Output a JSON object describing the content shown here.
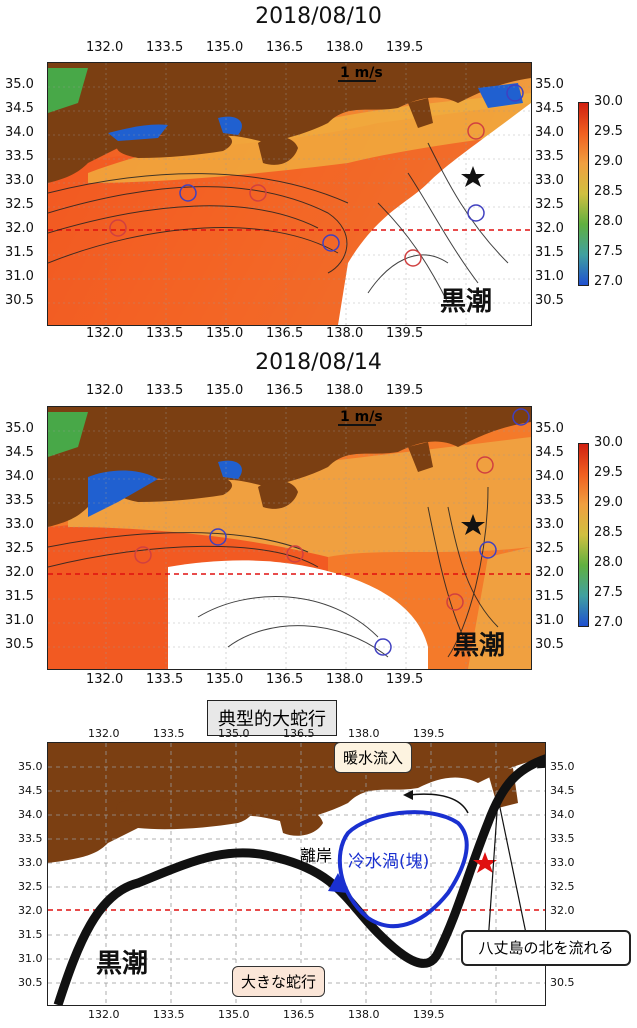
{
  "panel1": {
    "title": "2018/08/10",
    "scale": "1 m/s",
    "kuroshio": "黒潮"
  },
  "panel2": {
    "title": "2018/08/14",
    "scale": "1 m/s",
    "kuroshio": "黒潮"
  },
  "panel3": {
    "title": "典型的大蛇行",
    "kuroshio": "黒潮",
    "cold_eddy": "冷水渦(塊)",
    "warm_inflow": "暖水流入",
    "offshore": "離岸",
    "meander": "大きな蛇行",
    "hachijo": "八丈島の北を流れる"
  },
  "axes": {
    "lon_ticks": [
      "132.0",
      "133.5",
      "135.0",
      "136.5",
      "138.0",
      "139.5"
    ],
    "lat_ticks": [
      "35.0",
      "34.5",
      "34.0",
      "33.5",
      "33.0",
      "32.5",
      "32.0",
      "31.5",
      "31.0",
      "30.5"
    ]
  },
  "colorbar": {
    "labels": [
      "30.0",
      "29.5",
      "29.0",
      "28.5",
      "28.0",
      "27.5",
      "27.0"
    ],
    "range": [
      27.0,
      30.0
    ]
  }
}
